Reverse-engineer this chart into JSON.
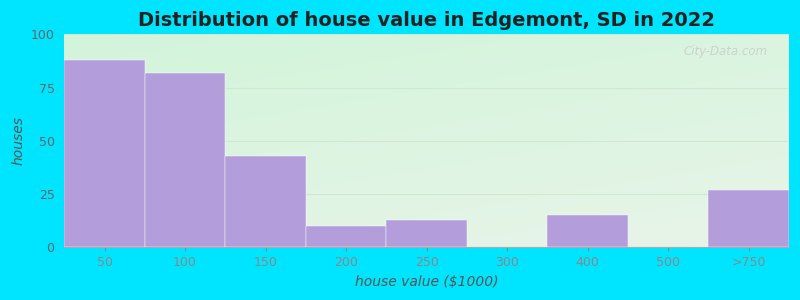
{
  "title": "Distribution of house value in Edgemont, SD in 2022",
  "xlabel": "house value ($1000)",
  "ylabel": "houses",
  "tick_labels": [
    "50",
    "100",
    "150",
    "200",
    "250",
    "300",
    "400",
    "500",
    ">750"
  ],
  "bar_lefts": [
    0,
    1,
    2,
    3,
    4,
    5,
    6,
    7,
    8
  ],
  "bar_widths": [
    1,
    1,
    1,
    1,
    1,
    1,
    1,
    1,
    1
  ],
  "values": [
    88,
    82,
    43,
    10,
    13,
    0,
    15,
    0,
    27
  ],
  "bar_color": "#b39ddb",
  "bar_edgecolor": "#b39ddb",
  "ylim": [
    0,
    100
  ],
  "yticks": [
    0,
    25,
    50,
    75,
    100
  ],
  "background_outer": "#00e5ff",
  "background_inner": "#e8f5e9",
  "grid_color": "#d0e8d0",
  "title_fontsize": 14,
  "axis_label_fontsize": 10,
  "tick_fontsize": 9,
  "watermark_text": "City-Data.com"
}
